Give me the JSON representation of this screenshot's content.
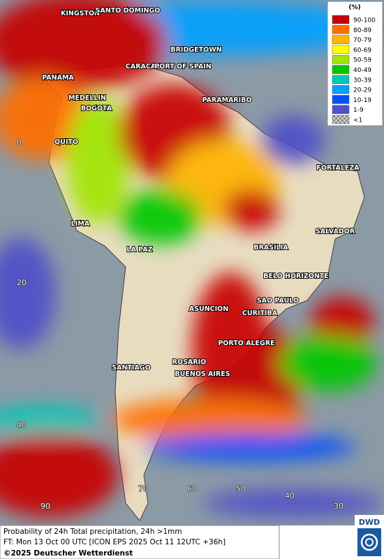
{
  "map": {
    "legend": {
      "title": "(%)",
      "items": [
        {
          "label": "90-100",
          "color": "#c80000"
        },
        {
          "label": "80-89",
          "color": "#ff6e00"
        },
        {
          "label": "70-79",
          "color": "#ffb400"
        },
        {
          "label": "60-69",
          "color": "#ffff00"
        },
        {
          "label": "50-59",
          "color": "#a0e600"
        },
        {
          "label": "40-49",
          "color": "#00c800"
        },
        {
          "label": "30-39",
          "color": "#00c8b4"
        },
        {
          "label": "20-29",
          "color": "#00a0ff"
        },
        {
          "label": "10-19",
          "color": "#0050ff"
        },
        {
          "label": "1-9",
          "color": "#5050c8"
        },
        {
          "label": "<1",
          "color": "#a0a0a0"
        }
      ]
    },
    "cities": [
      "KINGSTON",
      "SANTO DOMINGO",
      "BRIDGETOWN",
      "CARACAS",
      "PORT OF SPAIN",
      "PANAMA",
      "MEDELLIN",
      "BOGOTA",
      "PARAMARIBO",
      "QUITO",
      "FORTALEZA",
      "LIMA",
      "SALVADOR",
      "LA PAZ",
      "BRASILIA",
      "BELO HORIZONTE",
      "ASUNCION",
      "SAO PAULO",
      "CURITIBA",
      "PORTO ALEGRE",
      "ROSARIO",
      "SANTIAGO",
      "BUENOS AIRES"
    ],
    "latitude_labels": [
      "0",
      "20",
      "40"
    ],
    "longitude_labels": [
      "90",
      "70",
      "60",
      "50",
      "40",
      "30"
    ],
    "caption": {
      "line1": "Probability of 24h Total precipitation, 24h >1mm",
      "line2": "FT: Mon 13 Oct 00 UTC [ICON EPS 2025 Oct 11 12UTC +36h]",
      "line3": "©2025 Deutscher Wetterdienst"
    },
    "logo": "DWD"
  }
}
